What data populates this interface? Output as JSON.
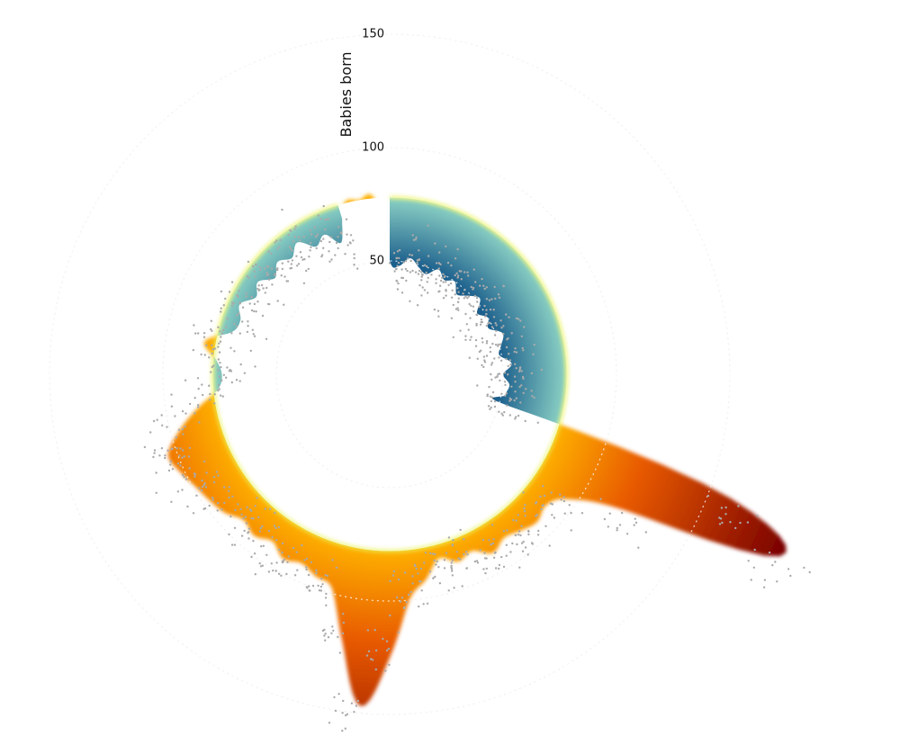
{
  "chart_data": {
    "type": "area",
    "subtype": "radial",
    "title": "",
    "ylabel": "Babies born",
    "yticks": [
      50,
      100,
      150
    ],
    "ytick_labels": [
      "50",
      "100",
      "150"
    ],
    "baseline": 78,
    "grid": true,
    "angle_step_degrees": 5,
    "values": [
      50,
      48,
      52,
      49,
      47,
      51,
      48,
      50,
      46,
      49,
      52,
      47,
      50,
      48,
      53,
      51,
      49,
      54,
      50,
      53,
      52,
      55,
      160,
      190,
      120,
      96,
      90,
      92,
      90,
      88,
      91,
      86,
      88,
      84,
      92,
      100,
      125,
      147,
      120,
      98,
      95,
      92,
      94,
      90,
      93,
      91,
      95,
      97,
      99,
      102,
      104,
      96,
      86,
      76,
      74,
      77,
      83,
      72,
      70,
      73,
      68,
      71,
      66,
      70,
      67,
      71,
      65,
      68,
      62,
      null,
      null,
      null
    ],
    "colors": {
      "below_inner": "#1b5e8c",
      "below_outer": "#8ed4c6",
      "above_inner": "#ffb300",
      "above_mid": "#e85a00",
      "above_outer": "#7a0000",
      "baseline_glow": "#e9f25a",
      "points": "#aaaaaa",
      "grid": "#c8c8c8"
    }
  }
}
